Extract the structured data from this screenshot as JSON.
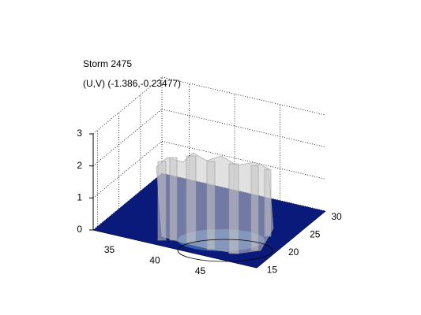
{
  "chart_data": {
    "type": "surface3d",
    "title": "Storm 2475",
    "subtitle": "(U,V) (-1.386,-0.23477)",
    "xlim": [
      32,
      50
    ],
    "xticks": [
      35,
      40,
      45
    ],
    "ylim": [
      14,
      30
    ],
    "yticks": [
      15,
      20,
      25,
      30
    ],
    "zlim": [
      0,
      3
    ],
    "zticks": [
      0,
      1,
      2,
      3
    ],
    "grid": true
  }
}
